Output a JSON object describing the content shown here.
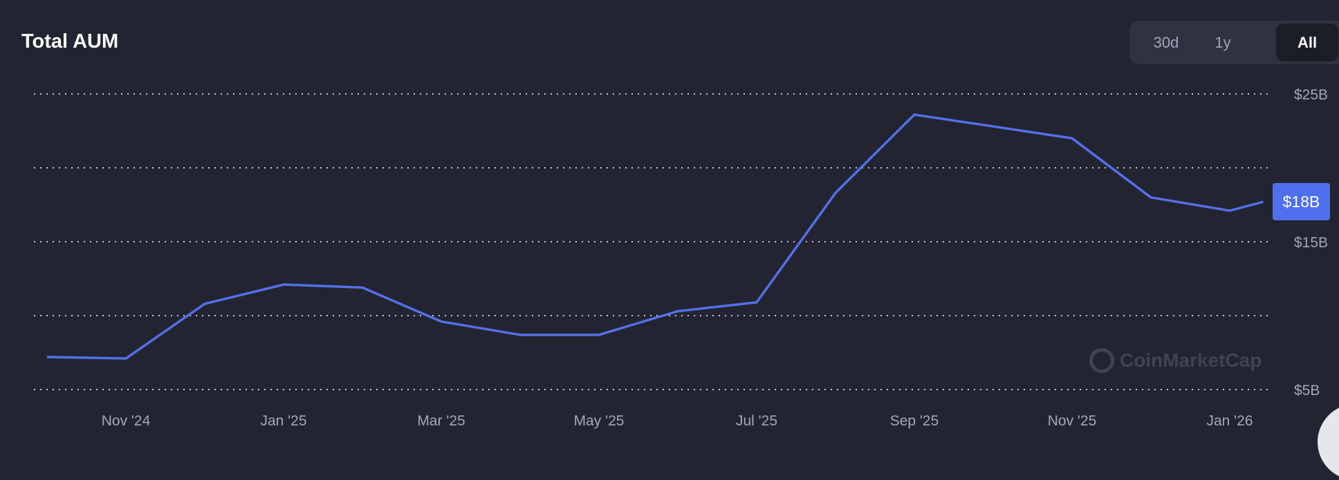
{
  "title": "Total AUM",
  "range_buttons": [
    {
      "label": "30d",
      "active": false
    },
    {
      "label": "1y",
      "active": false
    },
    {
      "label": "All",
      "active": true
    }
  ],
  "watermark": "CoinMarketCap",
  "chart_data": {
    "type": "line",
    "title": "Total AUM",
    "x": [
      "2024-10",
      "2024-11",
      "2024-12",
      "2025-01",
      "2025-02",
      "2025-03",
      "2025-04",
      "2025-05",
      "2025-06",
      "2025-07",
      "2025-08",
      "2025-09",
      "2025-10",
      "2025-11",
      "2025-12",
      "2026-01",
      "2026-01-14"
    ],
    "series": [
      {
        "values": [
          7.2,
          7.1,
          10.8,
          12.1,
          11.9,
          9.6,
          8.7,
          8.7,
          10.3,
          10.9,
          18.3,
          23.6,
          22.8,
          22.0,
          18.0,
          17.1,
          17.7
        ],
        "color": "#5470e8"
      }
    ],
    "x_ticks": [
      "Nov '24",
      "Jan '25",
      "Mar '25",
      "May '25",
      "Jul '25",
      "Sep '25",
      "Nov '25",
      "Jan '26"
    ],
    "y_ticks": [
      {
        "value": 25,
        "label": "$25B"
      },
      {
        "value": 20,
        "label": ""
      },
      {
        "value": 15,
        "label": "$15B"
      },
      {
        "value": 10,
        "label": ""
      },
      {
        "value": 5,
        "label": "$5B"
      }
    ],
    "ylim": [
      5,
      25
    ],
    "unit": "USD billions",
    "grid": "horizontal dotted",
    "current_value_label": "$18B",
    "badge_color": "#4f6ff0"
  }
}
